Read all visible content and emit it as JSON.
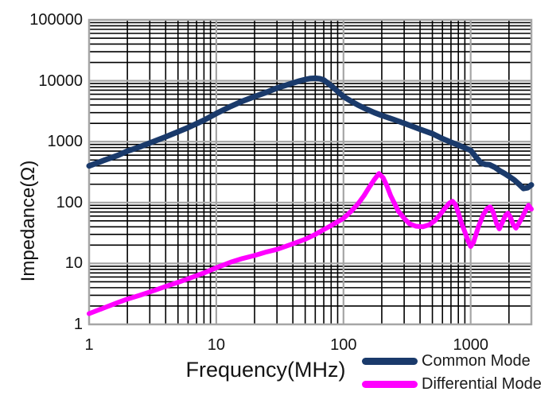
{
  "chart_data": {
    "type": "line",
    "title": "",
    "xlabel": "Frequency(MHz)",
    "ylabel": "Impedance(Ω)",
    "x_scale": "log",
    "y_scale": "log",
    "xlim": [
      1,
      3000
    ],
    "ylim": [
      1,
      100000
    ],
    "x_ticks": [
      {
        "value": 1,
        "label": "1"
      },
      {
        "value": 10,
        "label": "10"
      },
      {
        "value": 100,
        "label": "100"
      },
      {
        "value": 1000,
        "label": "1000"
      }
    ],
    "y_ticks": [
      {
        "value": 1,
        "label": "1"
      },
      {
        "value": 10,
        "label": "10"
      },
      {
        "value": 100,
        "label": "100"
      },
      {
        "value": 1000,
        "label": "1000"
      },
      {
        "value": 10000,
        "label": "10000"
      },
      {
        "value": 100000,
        "label": "100000"
      }
    ],
    "grid": {
      "minor_color": "#000000",
      "major_color": "#a6a6a6",
      "border_color": "#a6a6a6"
    },
    "legend_position": "bottom-right",
    "series": [
      {
        "name": "Common Mode",
        "color": "#1a3a6b",
        "width": 7,
        "points": [
          [
            1,
            400
          ],
          [
            1.3,
            490
          ],
          [
            1.7,
            600
          ],
          [
            2,
            700
          ],
          [
            2.5,
            820
          ],
          [
            3,
            950
          ],
          [
            4,
            1200
          ],
          [
            5,
            1450
          ],
          [
            6,
            1700
          ],
          [
            8,
            2250
          ],
          [
            10,
            2900
          ],
          [
            13,
            3800
          ],
          [
            16,
            4600
          ],
          [
            20,
            5500
          ],
          [
            25,
            6500
          ],
          [
            30,
            7600
          ],
          [
            35,
            8400
          ],
          [
            40,
            9200
          ],
          [
            45,
            9900
          ],
          [
            50,
            10500
          ],
          [
            55,
            10900
          ],
          [
            60,
            11000
          ],
          [
            65,
            10800
          ],
          [
            70,
            10300
          ],
          [
            80,
            8300
          ],
          [
            90,
            6700
          ],
          [
            100,
            5500
          ],
          [
            115,
            4600
          ],
          [
            130,
            4000
          ],
          [
            150,
            3450
          ],
          [
            175,
            3000
          ],
          [
            200,
            2700
          ],
          [
            250,
            2300
          ],
          [
            300,
            2000
          ],
          [
            400,
            1600
          ],
          [
            500,
            1350
          ],
          [
            600,
            1120
          ],
          [
            700,
            980
          ],
          [
            800,
            880
          ],
          [
            900,
            790
          ],
          [
            1000,
            720
          ],
          [
            1100,
            560
          ],
          [
            1200,
            450
          ],
          [
            1300,
            425
          ],
          [
            1400,
            420
          ],
          [
            1550,
            380
          ],
          [
            1700,
            330
          ],
          [
            1850,
            300
          ],
          [
            2000,
            270
          ],
          [
            2200,
            235
          ],
          [
            2400,
            200
          ],
          [
            2600,
            170
          ],
          [
            2800,
            175
          ],
          [
            3000,
            195
          ]
        ]
      },
      {
        "name": "Differential Mode",
        "color": "#ff00ff",
        "width": 6,
        "points": [
          [
            1,
            1.5
          ],
          [
            1.3,
            1.85
          ],
          [
            1.7,
            2.3
          ],
          [
            2,
            2.6
          ],
          [
            2.5,
            3
          ],
          [
            3,
            3.4
          ],
          [
            4,
            4.2
          ],
          [
            5,
            4.9
          ],
          [
            6,
            5.6
          ],
          [
            8,
            7
          ],
          [
            10,
            8.5
          ],
          [
            13,
            10.5
          ],
          [
            16,
            12
          ],
          [
            20,
            13.5
          ],
          [
            25,
            15.5
          ],
          [
            30,
            17
          ],
          [
            40,
            21
          ],
          [
            50,
            25
          ],
          [
            60,
            30
          ],
          [
            70,
            36
          ],
          [
            80,
            42
          ],
          [
            100,
            55
          ],
          [
            115,
            72
          ],
          [
            130,
            95
          ],
          [
            145,
            130
          ],
          [
            160,
            180
          ],
          [
            175,
            240
          ],
          [
            190,
            300
          ],
          [
            205,
            255
          ],
          [
            220,
            185
          ],
          [
            235,
            130
          ],
          [
            250,
            100
          ],
          [
            270,
            72
          ],
          [
            300,
            55
          ],
          [
            330,
            45
          ],
          [
            370,
            41
          ],
          [
            420,
            40
          ],
          [
            470,
            43
          ],
          [
            520,
            50
          ],
          [
            570,
            62
          ],
          [
            620,
            78
          ],
          [
            680,
            98
          ],
          [
            720,
            105
          ],
          [
            760,
            92
          ],
          [
            800,
            68
          ],
          [
            850,
            45
          ],
          [
            900,
            33
          ],
          [
            950,
            24
          ],
          [
            1000,
            19
          ],
          [
            1050,
            22
          ],
          [
            1150,
            40
          ],
          [
            1250,
            62
          ],
          [
            1350,
            80
          ],
          [
            1420,
            85
          ],
          [
            1500,
            70
          ],
          [
            1600,
            45
          ],
          [
            1680,
            37
          ],
          [
            1780,
            48
          ],
          [
            1880,
            62
          ],
          [
            1960,
            67
          ],
          [
            2050,
            58
          ],
          [
            2150,
            44
          ],
          [
            2270,
            38
          ],
          [
            2400,
            46
          ],
          [
            2550,
            58
          ],
          [
            2700,
            74
          ],
          [
            2850,
            90
          ],
          [
            3000,
            78
          ]
        ]
      }
    ]
  },
  "legend": {
    "items": [
      {
        "label": "Common Mode"
      },
      {
        "label": "Differential Mode"
      }
    ]
  }
}
